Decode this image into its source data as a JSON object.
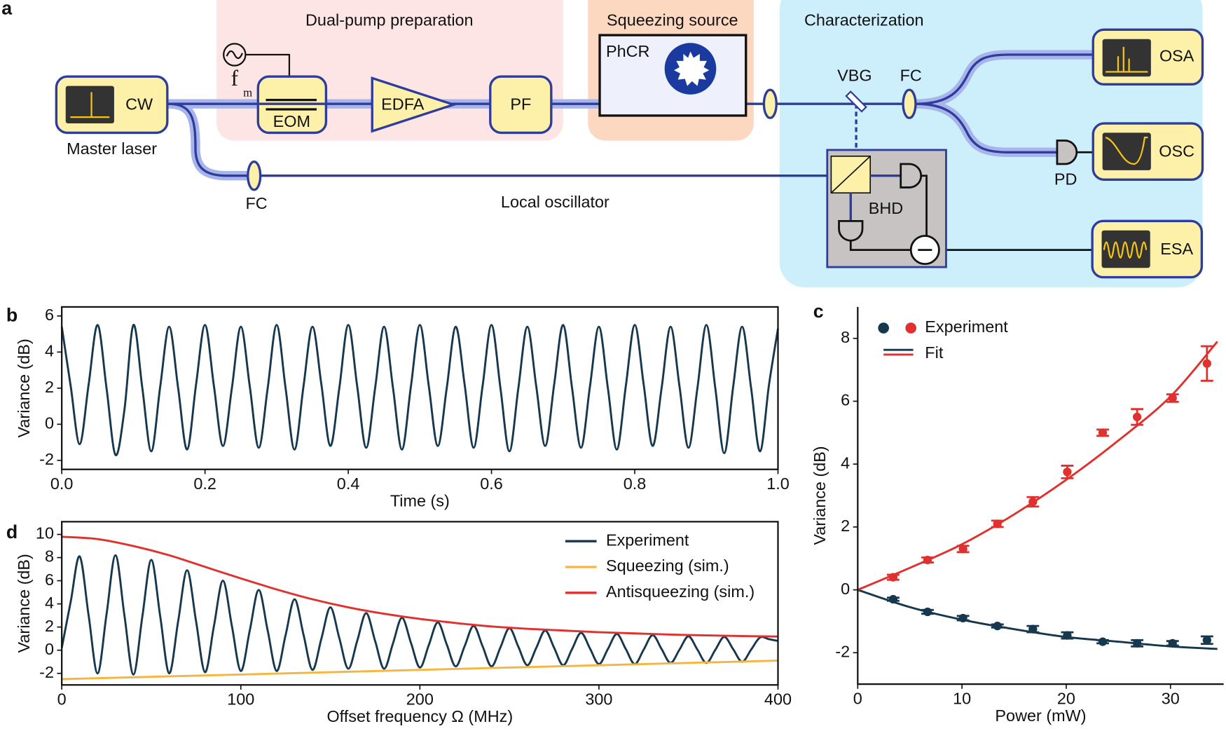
{
  "diagram": {
    "panel": "a",
    "regions": [
      "Dual-pump preparation",
      "Squeezing source",
      "Characterization"
    ],
    "labels": [
      "CW",
      "Master laser",
      "f",
      "m",
      "EOM",
      "EDFA",
      "PF",
      "PhCR",
      "VBG",
      "FC",
      "FC",
      "OSA",
      "OSC",
      "PD",
      "ESA",
      "BHD",
      "Local oscillator"
    ]
  },
  "chart_data": [
    {
      "type": "line",
      "panel": "b",
      "xlabel": "Time (s)",
      "ylabel": "Variance (dB)",
      "xlim": [
        0,
        1
      ],
      "ylim": [
        -2.5,
        6.5
      ],
      "xticks": [
        {
          "value": 0,
          "label": "0.0"
        },
        0.2,
        0.4,
        0.6,
        0.8,
        {
          "value": 1,
          "label": "1.0"
        }
      ],
      "yticks": [
        -2,
        0,
        2,
        4,
        6
      ],
      "series": [
        {
          "color": "#16384f",
          "x": [
            0,
            0.0125,
            0.025,
            0.0375,
            0.05,
            0.0625,
            0.075,
            0.0875,
            0.1,
            0.1125,
            0.125,
            0.1375,
            0.15,
            0.1625,
            0.175,
            0.1875,
            0.2,
            0.2125,
            0.225,
            0.2375,
            0.25,
            0.2625,
            0.275,
            0.2875,
            0.3,
            0.3125,
            0.325,
            0.3375,
            0.35,
            0.3625,
            0.375,
            0.3875,
            0.4,
            0.4125,
            0.425,
            0.4375,
            0.45,
            0.4625,
            0.475,
            0.4875,
            0.5,
            0.5125,
            0.525,
            0.5375,
            0.55,
            0.5625,
            0.575,
            0.5875,
            0.6,
            0.6125,
            0.625,
            0.6375,
            0.65,
            0.6625,
            0.675,
            0.6875,
            0.7,
            0.7125,
            0.725,
            0.7375,
            0.75,
            0.7625,
            0.775,
            0.7875,
            0.8,
            0.8125,
            0.825,
            0.8375,
            0.85,
            0.8625,
            0.875,
            0.8875,
            0.9,
            0.9125,
            0.925,
            0.9375,
            0.95,
            0.9625,
            0.975,
            0.9875,
            1
          ],
          "values": [
            5.4,
            2.1,
            -1.1,
            2.2,
            5.5,
            2.0,
            -1.7,
            0.8,
            5.5,
            2.0,
            -1.5,
            2.1,
            5.4,
            2.0,
            -1.4,
            2.2,
            5.5,
            2.1,
            -1.2,
            2.0,
            5.4,
            2.1,
            -1.3,
            2.0,
            5.5,
            2.0,
            -1.4,
            2.1,
            5.4,
            2.2,
            -1.2,
            2.0,
            5.5,
            2.1,
            -1.3,
            2.0,
            5.4,
            2.0,
            -1.4,
            2.1,
            5.5,
            2.1,
            -1.2,
            2.0,
            5.4,
            2.2,
            -1.3,
            2.1,
            5.5,
            2.0,
            -1.5,
            2.0,
            5.4,
            2.1,
            -1.2,
            2.2,
            5.5,
            2.0,
            -1.3,
            2.1,
            5.4,
            2.0,
            -1.4,
            2.1,
            5.5,
            2.2,
            -1.2,
            2.0,
            5.4,
            2.1,
            -1.3,
            2.0,
            5.5,
            2.0,
            -1.6,
            2.1,
            5.4,
            2.0,
            -1.5,
            2.2,
            5.3
          ]
        }
      ]
    },
    {
      "type": "scatter",
      "panel": "c",
      "xlabel": "Power (mW)",
      "ylabel": "Variance (dB)",
      "xlim": [
        0,
        35.1
      ],
      "ylim": [
        -3,
        9
      ],
      "xticks": [
        0,
        10,
        20,
        30
      ],
      "yticks": [
        -2,
        0,
        2,
        4,
        6,
        8
      ],
      "legend": "upper left",
      "experiment": {
        "name": "Experiment",
        "x": [
          3.4,
          6.7,
          10.1,
          13.4,
          16.8,
          20.1,
          23.5,
          26.8,
          30.2,
          33.5
        ],
        "series": [
          {
            "color": "#16384f",
            "values": [
              -0.3,
              -0.7,
              -0.9,
              -1.15,
              -1.25,
              -1.45,
              -1.65,
              -1.7,
              -1.7,
              -1.6
            ],
            "errors": [
              0.05,
              0.06,
              0.07,
              0.05,
              0.1,
              0.1,
              0.05,
              0.1,
              0.07,
              0.12
            ]
          },
          {
            "color": "#e0312f",
            "values": [
              0.4,
              0.95,
              1.3,
              2.1,
              2.8,
              3.75,
              5.0,
              5.5,
              6.1,
              7.2
            ],
            "errors": [
              0.08,
              0.08,
              0.1,
              0.1,
              0.15,
              0.2,
              0.1,
              0.25,
              0.12,
              0.55
            ]
          }
        ]
      },
      "fit": {
        "name": "Fit",
        "x": [
          0,
          5,
          10,
          15,
          20,
          25,
          30,
          34.5
        ],
        "series": [
          {
            "color": "#16384f",
            "values": [
              0,
              -0.55,
              -0.95,
              -1.25,
              -1.5,
              -1.65,
              -1.8,
              -1.88
            ]
          },
          {
            "color": "#e0312f",
            "values": [
              0,
              0.7,
              1.45,
              2.4,
              3.5,
              4.75,
              6.15,
              7.9
            ]
          }
        ]
      }
    },
    {
      "type": "line",
      "panel": "d",
      "xlabel": "Offset frequency Ω (MHz)",
      "ylabel": "Variance (dB)",
      "xlim": [
        0,
        400
      ],
      "ylim": [
        -3,
        11.1
      ],
      "xticks": [
        0,
        100,
        200,
        300,
        400
      ],
      "yticks": [
        -2,
        0,
        2,
        4,
        6,
        8,
        10
      ],
      "legend": "upper right",
      "series": [
        {
          "name": "Experiment",
          "color": "#16384f",
          "x": [
            0,
            5,
            10,
            15,
            20,
            25,
            30,
            35,
            40,
            45,
            50,
            55,
            60,
            65,
            70,
            75,
            80,
            85,
            90,
            95,
            100,
            105,
            110,
            115,
            120,
            125,
            130,
            135,
            140,
            145,
            150,
            155,
            160,
            165,
            170,
            175,
            180,
            185,
            190,
            195,
            200,
            205,
            210,
            215,
            220,
            225,
            230,
            235,
            240,
            245,
            250,
            255,
            260,
            265,
            270,
            275,
            280,
            285,
            290,
            295,
            300,
            305,
            310,
            315,
            320,
            325,
            330,
            335,
            340,
            345,
            350,
            355,
            360,
            365,
            370,
            375,
            380,
            385,
            390,
            395,
            400
          ],
          "values": [
            0.2,
            4.2,
            8.1,
            3.0,
            -2.0,
            3.1,
            8.2,
            3.0,
            -2.1,
            2.9,
            7.8,
            2.9,
            -2.0,
            2.5,
            6.9,
            2.5,
            -1.9,
            2.1,
            6.0,
            2.1,
            -1.8,
            1.7,
            5.2,
            1.7,
            -1.8,
            1.3,
            4.4,
            1.35,
            -1.7,
            1.0,
            3.7,
            1.05,
            -1.6,
            0.8,
            3.2,
            0.8,
            -1.6,
            0.6,
            2.8,
            0.65,
            -1.5,
            0.45,
            2.4,
            0.5,
            -1.4,
            0.35,
            2.1,
            0.35,
            -1.4,
            0.25,
            1.9,
            0.3,
            -1.3,
            0.2,
            1.7,
            0.2,
            -1.3,
            0.1,
            1.5,
            0.15,
            -1.2,
            0.1,
            1.4,
            0.1,
            -1.2,
            0.05,
            1.3,
            0.1,
            -1.1,
            0.05,
            1.2,
            0.05,
            -1.1,
            0.03,
            1.15,
            0.08,
            -1.0,
            0.05,
            1.1,
            0.95,
            0.8
          ]
        },
        {
          "name": "Squeezing (sim.)",
          "color": "#f5b53f",
          "x": [
            0,
            100,
            200,
            300,
            400
          ],
          "values": [
            -2.5,
            -2.1,
            -1.7,
            -1.3,
            -0.9
          ]
        },
        {
          "name": "Antisqueezing (sim.)",
          "color": "#e0312f",
          "x": [
            0,
            20,
            40,
            60,
            80,
            100,
            120,
            140,
            160,
            180,
            200,
            220,
            240,
            260,
            280,
            300,
            320,
            340,
            360,
            380,
            400
          ],
          "values": [
            9.8,
            9.6,
            9.0,
            8.2,
            7.2,
            6.2,
            5.25,
            4.4,
            3.7,
            3.15,
            2.7,
            2.35,
            2.05,
            1.85,
            1.7,
            1.55,
            1.45,
            1.35,
            1.28,
            1.22,
            1.18
          ]
        }
      ]
    }
  ]
}
